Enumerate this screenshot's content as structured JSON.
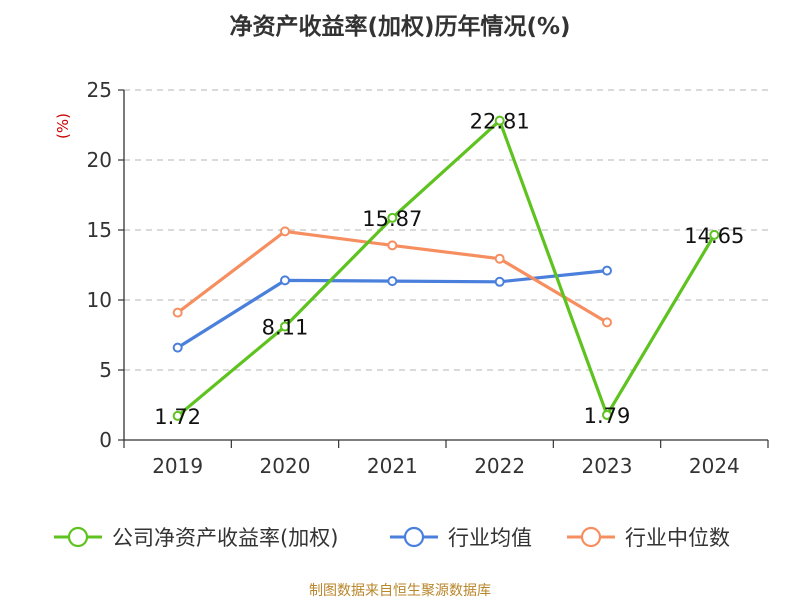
{
  "chart_data": {
    "type": "line",
    "title": "净资产收益率(加权)历年情况(%)",
    "ylabel": "(%)",
    "xlabel": "",
    "categories": [
      "2019",
      "2020",
      "2021",
      "2022",
      "2023",
      "2024"
    ],
    "ylim": [
      0,
      25
    ],
    "yticks": [
      0,
      5,
      10,
      15,
      20,
      25
    ],
    "grid": true,
    "legend_position": "bottom",
    "series": [
      {
        "name": "公司净资产收益率(加权)",
        "color": "#5ec21f",
        "values": [
          1.72,
          8.11,
          15.87,
          22.81,
          1.79,
          14.65
        ],
        "labels": [
          "1.72",
          "8.11",
          "15.87",
          "22.81",
          "1.79",
          "14.65"
        ]
      },
      {
        "name": "行业均值",
        "color": "#4a7fdc",
        "values": [
          6.6,
          11.4,
          11.35,
          11.3,
          12.1,
          null
        ]
      },
      {
        "name": "行业中位数",
        "color": "#f68e5f",
        "values": [
          9.1,
          14.9,
          13.9,
          12.95,
          8.4,
          null
        ]
      }
    ],
    "source": "制图数据来自恒生聚源数据库"
  }
}
